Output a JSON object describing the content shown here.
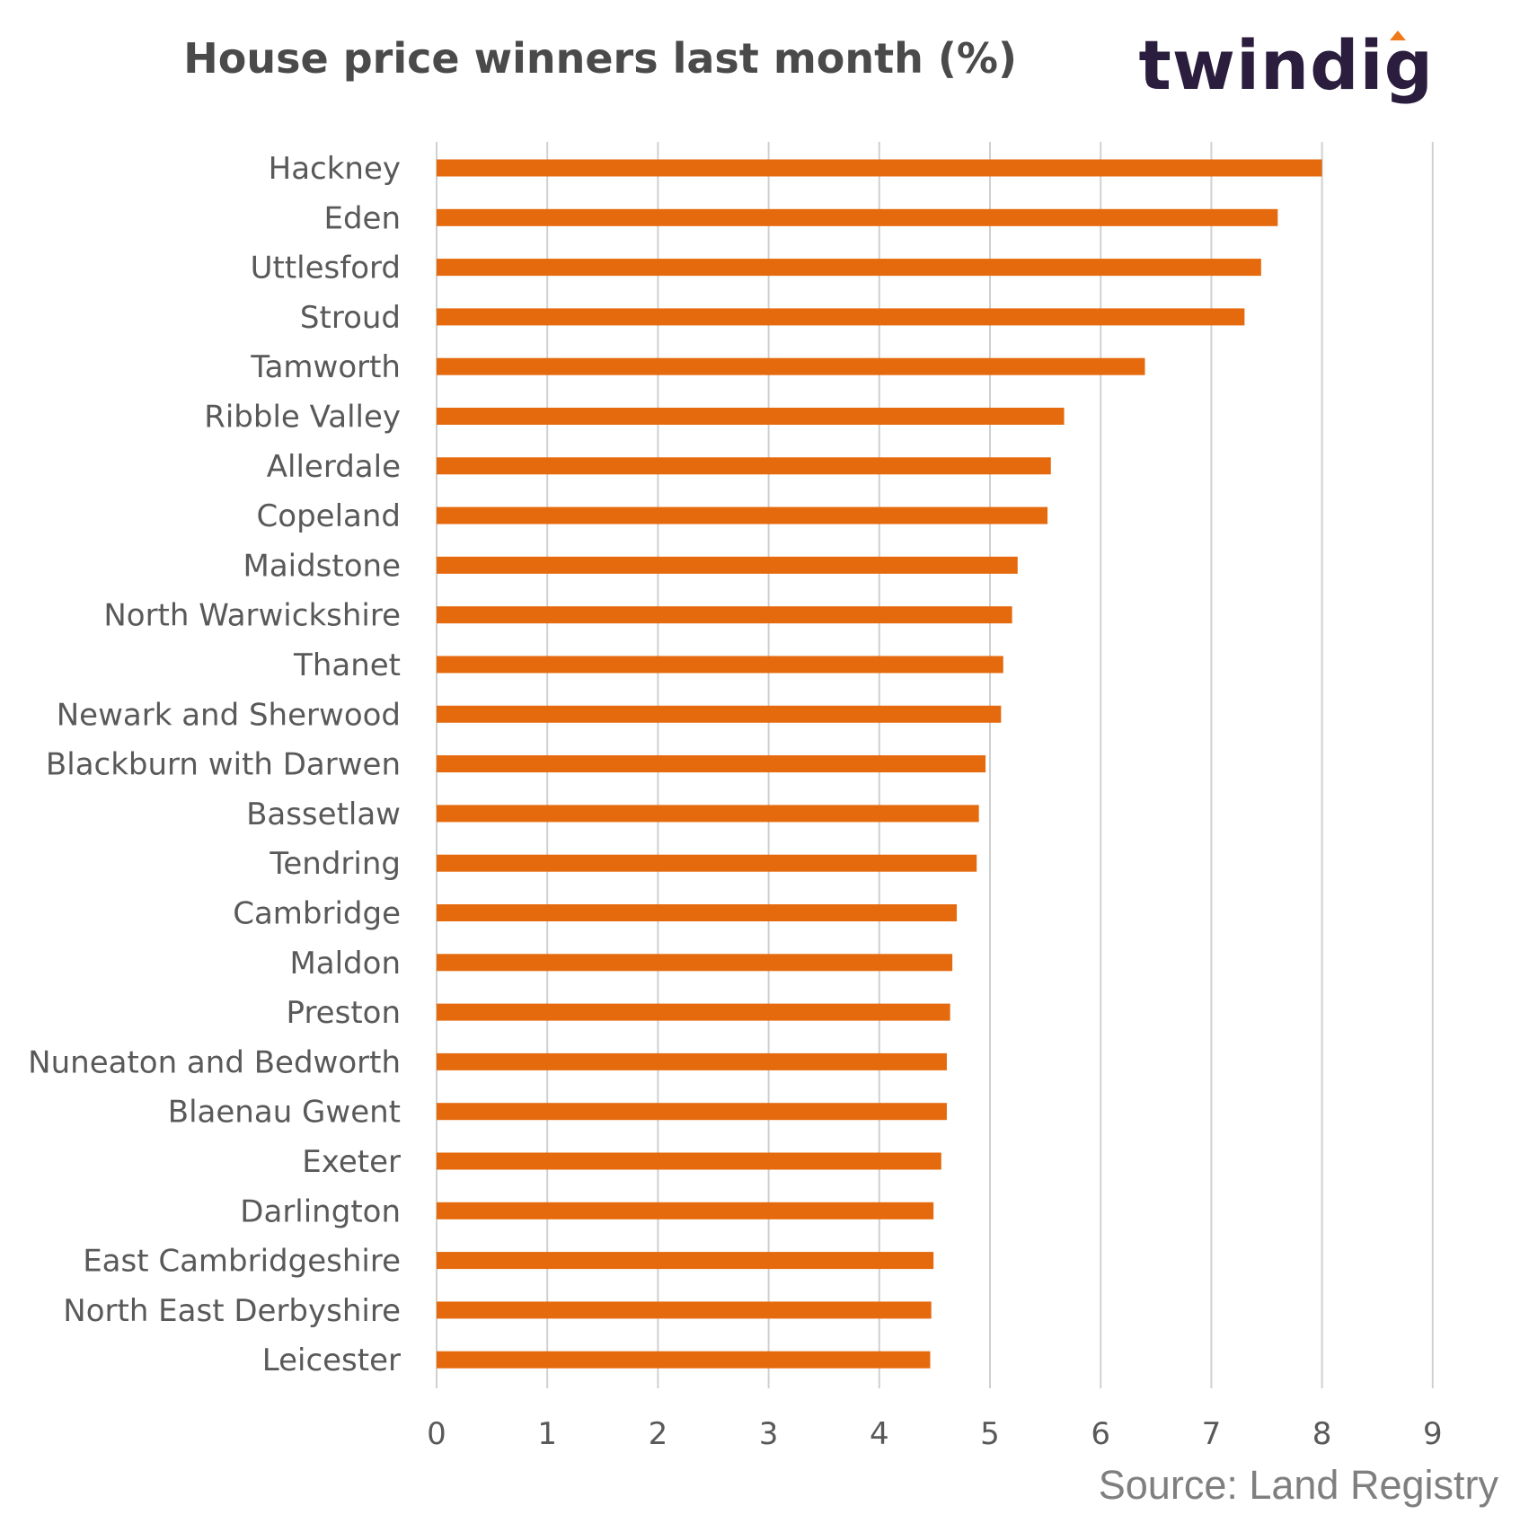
{
  "title": "House price winners last month (%)",
  "logo_text": "twindig",
  "source": "Source: Land Registry",
  "colors": {
    "bar": "#e56a0d",
    "grid": "#d0d0d0",
    "label": "#595959",
    "logo_accent": "#f07a1a"
  },
  "chart_data": {
    "type": "bar",
    "orientation": "horizontal",
    "title": "House price winners last month (%)",
    "categories": [
      "Hackney",
      "Eden",
      "Uttlesford",
      "Stroud",
      "Tamworth",
      "Ribble Valley",
      "Allerdale",
      "Copeland",
      "Maidstone",
      "North Warwickshire",
      "Thanet",
      "Newark and Sherwood",
      "Blackburn with Darwen",
      "Bassetlaw",
      "Tendring",
      "Cambridge",
      "Maldon",
      "Preston",
      "Nuneaton and Bedworth",
      "Blaenau Gwent",
      "Exeter",
      "Darlington",
      "East Cambridgeshire",
      "North East Derbyshire",
      "Leicester"
    ],
    "values": [
      8.0,
      7.6,
      7.45,
      7.3,
      6.4,
      5.67,
      5.55,
      5.52,
      5.25,
      5.2,
      5.12,
      5.1,
      4.96,
      4.9,
      4.88,
      4.7,
      4.66,
      4.64,
      4.61,
      4.61,
      4.56,
      4.49,
      4.49,
      4.47,
      4.46
    ],
    "xlim": [
      0,
      9
    ],
    "xticks": [
      "0",
      "1",
      "2",
      "3",
      "4",
      "5",
      "6",
      "7",
      "8",
      "9"
    ],
    "grid": true,
    "legend": "none"
  }
}
